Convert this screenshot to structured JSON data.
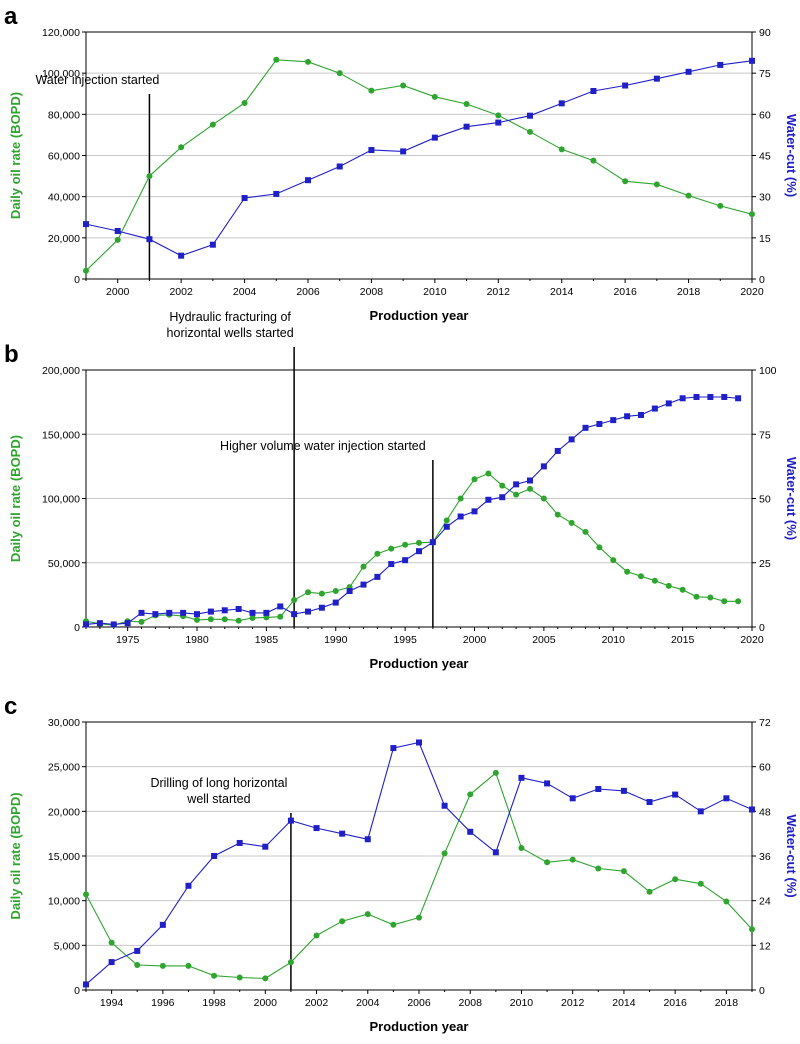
{
  "chart_data": [
    {
      "panel": "a",
      "type": "line",
      "xlabel": "Production year",
      "ylabel": "Daily oil rate (BOPD)",
      "y2label": "Water-cut (%)",
      "xlim": [
        1999,
        2020
      ],
      "ylim": [
        0,
        120000
      ],
      "y2lim": [
        0,
        90
      ],
      "xticks": [
        2000,
        2002,
        2004,
        2006,
        2008,
        2010,
        2012,
        2014,
        2016,
        2018,
        2020
      ],
      "xtick_labels": [
        "2000",
        "2002",
        "2004",
        "2006",
        "2008",
        "2010",
        "2012",
        "2014",
        "2016",
        "2018",
        "2020"
      ],
      "yticks": [
        0,
        20000,
        40000,
        60000,
        80000,
        100000,
        120000
      ],
      "ytick_labels": [
        "0",
        "20,000",
        "40,000",
        "60,000",
        "80,000",
        "100,000",
        "120,000"
      ],
      "y2ticks": [
        0,
        15,
        30,
        45,
        60,
        75,
        90
      ],
      "y2tick_labels": [
        "0",
        "15",
        "30",
        "45",
        "60",
        "75",
        "90"
      ],
      "grid": true,
      "series": [
        {
          "axis": "left",
          "color": "#2ea52e",
          "marker": "circle",
          "x": [
            1999,
            2000,
            2001,
            2002,
            2003,
            2004,
            2005,
            2006,
            2007,
            2008,
            2009,
            2010,
            2011,
            2012,
            2013,
            2014,
            2015,
            2016,
            2017,
            2018,
            2019,
            2020
          ],
          "y": [
            4000,
            19000,
            50000,
            64000,
            75000,
            85500,
            106500,
            105500,
            100000,
            91500,
            94000,
            88500,
            85000,
            79500,
            71500,
            63000,
            57500,
            47500,
            46000,
            40500,
            35500,
            31500
          ]
        },
        {
          "axis": "right",
          "color": "#2020c8",
          "marker": "square",
          "x": [
            1999,
            2000,
            2001,
            2002,
            2003,
            2004,
            2005,
            2006,
            2007,
            2008,
            2009,
            2010,
            2011,
            2012,
            2013,
            2014,
            2015,
            2016,
            2017,
            2018,
            2019,
            2020
          ],
          "y": [
            20,
            17.5,
            14.5,
            8.5,
            12.5,
            29.5,
            31,
            36,
            41,
            47,
            46.5,
            51.5,
            55.5,
            57,
            59.5,
            64,
            68.5,
            70.5,
            73,
            75.5,
            78,
            79.5
          ]
        }
      ],
      "annotations": [
        {
          "x": 2001,
          "text_lines": [
            "Water injection started"
          ]
        }
      ]
    },
    {
      "panel": "b",
      "type": "line",
      "xlabel": "Production year",
      "ylabel": "Daily oil rate (BOPD)",
      "y2label": "Water-cut (%)",
      "xlim": [
        1972,
        2020
      ],
      "ylim": [
        0,
        200000
      ],
      "y2lim": [
        0,
        100
      ],
      "xticks": [
        1975,
        1980,
        1985,
        1990,
        1995,
        2000,
        2005,
        2010,
        2015,
        2020
      ],
      "xtick_labels": [
        "1975",
        "1980",
        "1985",
        "1990",
        "1995",
        "2000",
        "2005",
        "2010",
        "2015",
        "2020"
      ],
      "yticks": [
        0,
        50000,
        100000,
        150000,
        200000
      ],
      "ytick_labels": [
        "0",
        "50,000",
        "100,000",
        "150,000",
        "200,000"
      ],
      "y2ticks": [
        0,
        25,
        50,
        75,
        100
      ],
      "y2tick_labels": [
        "0",
        "25",
        "50",
        "75",
        "100"
      ],
      "grid": true,
      "series": [
        {
          "axis": "left",
          "color": "#2ea52e",
          "marker": "circle",
          "x": [
            1972,
            1973,
            1974,
            1975,
            1976,
            1977,
            1978,
            1979,
            1980,
            1981,
            1982,
            1983,
            1984,
            1985,
            1986,
            1987,
            1988,
            1989,
            1990,
            1991,
            1992,
            1993,
            1994,
            1995,
            1996,
            1997,
            1998,
            1999,
            2000,
            2001,
            2002,
            2003,
            2004,
            2005,
            2006,
            2007,
            2008,
            2009,
            2010,
            2011,
            2012,
            2013,
            2014,
            2015,
            2016,
            2017,
            2018,
            2019
          ],
          "y": [
            4500,
            2500,
            1500,
            4500,
            4000,
            9000,
            9500,
            8500,
            5500,
            6000,
            6000,
            5000,
            7000,
            7500,
            8000,
            21000,
            27000,
            26000,
            28000,
            31000,
            47000,
            57000,
            61000,
            64000,
            65500,
            66000,
            83000,
            100000,
            115000,
            119500,
            110000,
            103000,
            107500,
            100000,
            87500,
            81000,
            74000,
            62000,
            52000,
            43000,
            39500,
            36000,
            32000,
            29000,
            23500,
            23000,
            20000,
            20000
          ]
        },
        {
          "axis": "right",
          "color": "#2020c8",
          "marker": "square",
          "x": [
            1972,
            1973,
            1974,
            1975,
            1976,
            1977,
            1978,
            1979,
            1980,
            1981,
            1982,
            1983,
            1984,
            1985,
            1986,
            1987,
            1988,
            1989,
            1990,
            1991,
            1992,
            1993,
            1994,
            1995,
            1996,
            1997,
            1998,
            1999,
            2000,
            2001,
            2002,
            2003,
            2004,
            2005,
            2006,
            2007,
            2008,
            2009,
            2010,
            2011,
            2012,
            2013,
            2014,
            2015,
            2016,
            2017,
            2018,
            2019
          ],
          "y": [
            1,
            1.5,
            1,
            1.5,
            5.5,
            5,
            5.5,
            5.5,
            5,
            6,
            6.5,
            7,
            5.5,
            5.5,
            8,
            5,
            6,
            7.5,
            9.5,
            14,
            16.5,
            19.5,
            24.5,
            26,
            29.5,
            33,
            39,
            43,
            45,
            49.5,
            50.5,
            55.5,
            57,
            62.5,
            68.5,
            73,
            77.5,
            79,
            80.5,
            82,
            82.5,
            85,
            87,
            89,
            89.5,
            89.5,
            89.5,
            89
          ]
        }
      ],
      "annotations": [
        {
          "x": 1987,
          "text_lines": [
            "Hydraulic fracturing of",
            "horizontal wells started"
          ]
        },
        {
          "x": 1997,
          "text_lines": [
            "Higher volume water injection started"
          ]
        }
      ]
    },
    {
      "panel": "c",
      "type": "line",
      "xlabel": "Production year",
      "ylabel": "Daily oil rate (BOPD)",
      "y2label": "Water-cut (%)",
      "xlim": [
        1993,
        2019
      ],
      "ylim": [
        0,
        30000
      ],
      "y2lim": [
        0,
        72
      ],
      "xticks": [
        1994,
        1996,
        1998,
        2000,
        2002,
        2004,
        2006,
        2008,
        2010,
        2012,
        2014,
        2016,
        2018
      ],
      "xtick_labels": [
        "1994",
        "1996",
        "1998",
        "2000",
        "2002",
        "2004",
        "2006",
        "2008",
        "2010",
        "2012",
        "2014",
        "2016",
        "2018"
      ],
      "yticks": [
        0,
        5000,
        10000,
        15000,
        20000,
        25000,
        30000
      ],
      "ytick_labels": [
        "0",
        "5,000",
        "10,000",
        "15,000",
        "20,000",
        "25,000",
        "30,000"
      ],
      "y2ticks": [
        0,
        12,
        24,
        36,
        48,
        60,
        72
      ],
      "y2tick_labels": [
        "0",
        "12",
        "24",
        "36",
        "48",
        "60",
        "72"
      ],
      "grid": true,
      "series": [
        {
          "axis": "left",
          "color": "#2ea52e",
          "marker": "circle",
          "x": [
            1993,
            1994,
            1995,
            1996,
            1997,
            1998,
            1999,
            2000,
            2001,
            2002,
            2003,
            2004,
            2005,
            2006,
            2007,
            2008,
            2009,
            2010,
            2011,
            2012,
            2013,
            2014,
            2015,
            2016,
            2017,
            2018,
            2019
          ],
          "y": [
            10700,
            5300,
            2800,
            2700,
            2700,
            1600,
            1400,
            1300,
            3100,
            6100,
            7700,
            8500,
            7300,
            8100,
            15300,
            21900,
            24300,
            15900,
            14300,
            14600,
            13600,
            13300,
            11000,
            12400,
            11900,
            9900,
            6800
          ]
        },
        {
          "axis": "right",
          "color": "#2020c8",
          "marker": "square",
          "x": [
            1993,
            1994,
            1995,
            1996,
            1997,
            1998,
            1999,
            2000,
            2001,
            2002,
            2003,
            2004,
            2005,
            2006,
            2007,
            2008,
            2009,
            2010,
            2011,
            2012,
            2013,
            2014,
            2015,
            2016,
            2017,
            2018,
            2019
          ],
          "y": [
            1.5,
            7.5,
            10.5,
            17.5,
            28,
            36,
            39.5,
            38.5,
            45.5,
            43.5,
            42,
            40.5,
            65,
            66.5,
            49.5,
            42.5,
            37,
            57,
            55.5,
            51.5,
            54,
            53.5,
            50.5,
            52.5,
            48,
            51.5,
            48.5
          ]
        }
      ],
      "annotations": [
        {
          "x": 2001,
          "text_lines": [
            "Drilling of long horizontal",
            "well started"
          ]
        }
      ]
    }
  ]
}
